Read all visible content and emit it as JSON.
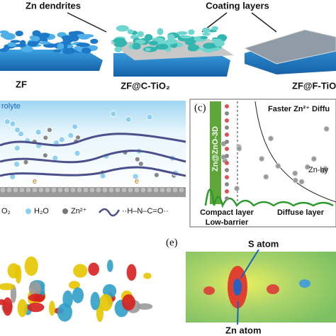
{
  "panel_top": {
    "headings": [
      "Zn dendrites",
      "Coating layers"
    ],
    "captions": [
      "ZF",
      "ZF@C-TiO₂",
      "ZF@F-TiO"
    ]
  },
  "panel_b": {
    "electrolyte": "rolyte",
    "electrons": [
      "e",
      "e"
    ],
    "legend": [
      "O₂",
      "H₂O",
      "Zn²⁺",
      "··H–N–C=O··"
    ]
  },
  "panel_c": {
    "label": "(c)",
    "title": "Faster Zn²⁺ Diffu",
    "side_label": "Zn@ZnO-3D",
    "annotation": "Zn-hy",
    "layers": [
      "Compact layer",
      "Low-barrier",
      "Diffuse layer"
    ]
  },
  "panel_e": {
    "label": "(e)",
    "annotations": [
      "S atom",
      "Zn atom"
    ]
  }
}
